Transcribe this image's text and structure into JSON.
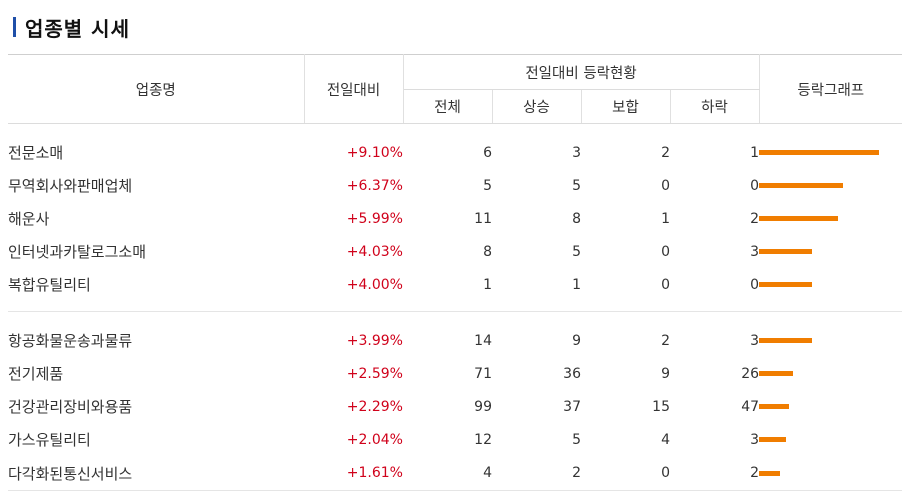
{
  "title": "업종별 시세",
  "headers": {
    "name": "업종명",
    "change": "전일대비",
    "status_group": "전일대비 등락현황",
    "total": "전체",
    "up": "상승",
    "flat": "보합",
    "down": "하락",
    "graph": "등락그래프"
  },
  "colors": {
    "bar": "#f07d00",
    "up_rate": "#d0021b",
    "title_mark": "#1f4fa8"
  },
  "groups": [
    [
      {
        "name": "전문소매",
        "rate": "+9.10%",
        "rate_value": 9.1,
        "total": "6",
        "up": "3",
        "flat": "2",
        "down": "1"
      },
      {
        "name": "무역회사와판매업체",
        "rate": "+6.37%",
        "rate_value": 6.37,
        "total": "5",
        "up": "5",
        "flat": "0",
        "down": "0"
      },
      {
        "name": "해운사",
        "rate": "+5.99%",
        "rate_value": 5.99,
        "total": "11",
        "up": "8",
        "flat": "1",
        "down": "2"
      },
      {
        "name": "인터넷과카탈로그소매",
        "rate": "+4.03%",
        "rate_value": 4.03,
        "total": "8",
        "up": "5",
        "flat": "0",
        "down": "3"
      },
      {
        "name": "복합유틸리티",
        "rate": "+4.00%",
        "rate_value": 4.0,
        "total": "1",
        "up": "1",
        "flat": "0",
        "down": "0"
      }
    ],
    [
      {
        "name": "항공화물운송과물류",
        "rate": "+3.99%",
        "rate_value": 3.99,
        "total": "14",
        "up": "9",
        "flat": "2",
        "down": "3"
      },
      {
        "name": "전기제품",
        "rate": "+2.59%",
        "rate_value": 2.59,
        "total": "71",
        "up": "36",
        "flat": "9",
        "down": "26"
      },
      {
        "name": "건강관리장비와용품",
        "rate": "+2.29%",
        "rate_value": 2.29,
        "total": "99",
        "up": "37",
        "flat": "15",
        "down": "47"
      },
      {
        "name": "가스유틸리티",
        "rate": "+2.04%",
        "rate_value": 2.04,
        "total": "12",
        "up": "5",
        "flat": "4",
        "down": "3"
      },
      {
        "name": "다각화된통신서비스",
        "rate": "+1.61%",
        "rate_value": 1.61,
        "total": "4",
        "up": "2",
        "flat": "0",
        "down": "2"
      }
    ]
  ]
}
